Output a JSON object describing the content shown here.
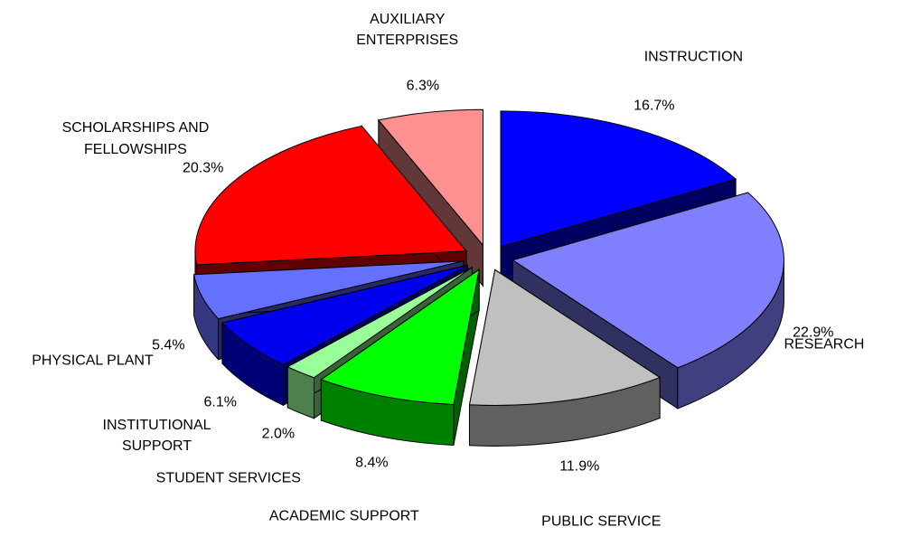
{
  "chart_data": {
    "type": "pie",
    "categories": [
      "INSTRUCTION",
      "RESEARCH",
      "PUBLIC SERVICE",
      "ACADEMIC SUPPORT",
      "STUDENT SERVICES",
      "INSTITUTIONAL SUPPORT",
      "PHYSICAL PLANT",
      "SCHOLARSHIPS AND FELLOWSHIPS",
      "AUXILIARY ENTERPRISES"
    ],
    "values": [
      16.7,
      22.9,
      11.9,
      8.4,
      2.0,
      6.1,
      5.4,
      20.3,
      6.3
    ],
    "value_labels": [
      "16.7%",
      "22.9%",
      "11.9%",
      "8.4%",
      "2.0%",
      "6.1%",
      "5.4%",
      "20.3%",
      "6.3%"
    ],
    "colors": [
      "#0000ff",
      "#8080ff",
      "#c0c0c0",
      "#00ff00",
      "#99ff99",
      "#0000ee",
      "#6670ff",
      "#ff0000",
      "#ff9090"
    ]
  }
}
